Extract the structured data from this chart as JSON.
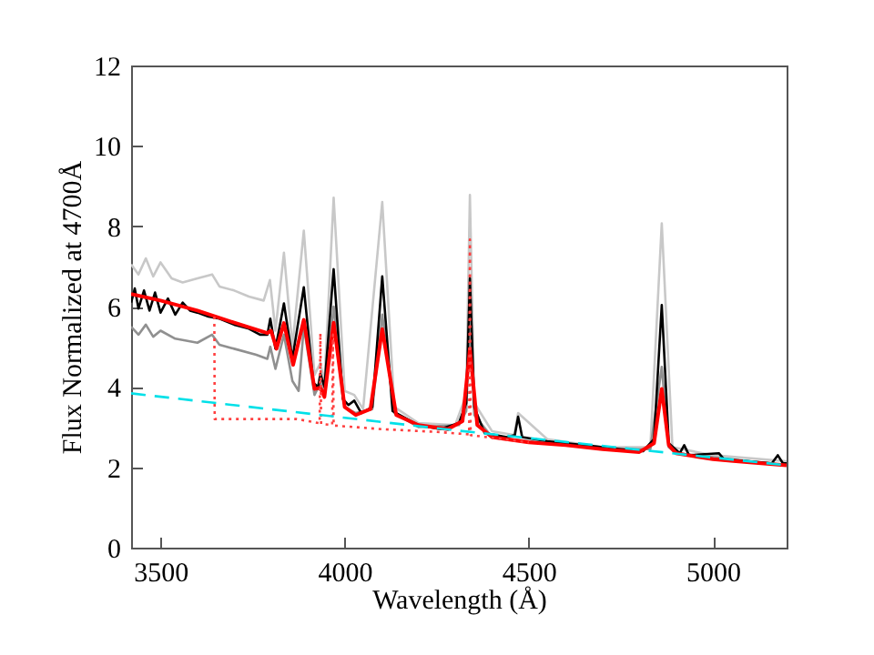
{
  "chart_data": {
    "type": "line",
    "xlabel": "Wavelength (Å)",
    "ylabel": "Flux Normalized at 4700Å",
    "xlim": [
      3420,
      5200
    ],
    "xticks": [
      3500,
      4000,
      4500,
      5000
    ],
    "ylim": [
      0,
      12
    ],
    "yticks": [
      0,
      2,
      4,
      6,
      8,
      10,
      12
    ],
    "grid": false,
    "series": [
      {
        "color": "#c8c8c8",
        "line_style": "solid",
        "x": [
          3420,
          3440,
          3460,
          3480,
          3500,
          3530,
          3560,
          3600,
          3640,
          3660,
          3700,
          3740,
          3780,
          3797,
          3812,
          3835,
          3858,
          3889,
          3918,
          3934,
          3945,
          3970,
          4000,
          4026,
          4050,
          4102,
          4135,
          4200,
          4300,
          4330,
          4340,
          4352,
          4400,
          4460,
          4471,
          4550,
          4700,
          4830,
          4861,
          4890,
          5000,
          5200
        ],
        "values": [
          7.05,
          6.8,
          7.2,
          6.75,
          7.1,
          6.7,
          6.6,
          6.7,
          6.8,
          6.5,
          6.4,
          6.25,
          6.15,
          6.66,
          5.4,
          7.34,
          5.0,
          7.89,
          4.3,
          4.6,
          4.1,
          8.71,
          3.9,
          3.8,
          3.45,
          8.6,
          3.5,
          3.1,
          3.05,
          3.8,
          8.78,
          3.6,
          2.9,
          2.8,
          3.35,
          2.7,
          2.5,
          2.5,
          8.07,
          2.5,
          2.3,
          2.15
        ]
      },
      {
        "color": "#909090",
        "line_style": "solid",
        "x": [
          3420,
          3440,
          3460,
          3480,
          3500,
          3540,
          3600,
          3640,
          3660,
          3700,
          3760,
          3790,
          3798,
          3812,
          3835,
          3858,
          3875,
          3889,
          3918,
          3934,
          3945,
          3970,
          4000,
          4030,
          4075,
          4102,
          4135,
          4200,
          4310,
          4330,
          4340,
          4352,
          4400,
          4700,
          4830,
          4861,
          4880,
          4900,
          5200
        ],
        "values": [
          5.5,
          5.3,
          5.55,
          5.25,
          5.4,
          5.2,
          5.1,
          5.3,
          5.05,
          4.95,
          4.8,
          4.7,
          5.0,
          4.45,
          5.3,
          4.15,
          3.9,
          5.5,
          3.8,
          4.1,
          3.8,
          6.0,
          3.5,
          3.35,
          3.45,
          5.8,
          3.35,
          3.0,
          3.05,
          3.4,
          5.5,
          3.3,
          2.75,
          2.45,
          2.45,
          4.5,
          2.5,
          2.35,
          2.05
        ]
      },
      {
        "color": "#000000",
        "line_style": "solid",
        "x": [
          3420,
          3430,
          3440,
          3455,
          3470,
          3485,
          3500,
          3520,
          3540,
          3560,
          3580,
          3600,
          3630,
          3660,
          3700,
          3740,
          3770,
          3790,
          3798,
          3812,
          3835,
          3858,
          3889,
          3915,
          3928,
          3934,
          3945,
          3970,
          3995,
          4010,
          4026,
          4045,
          4075,
          4102,
          4130,
          4200,
          4260,
          4310,
          4330,
          4340,
          4352,
          4380,
          4440,
          4462,
          4471,
          4482,
          4550,
          4650,
          4750,
          4810,
          4840,
          4861,
          4880,
          4910,
          4922,
          4935,
          5016,
          5030,
          5160,
          5176,
          5190,
          5200
        ],
        "values": [
          6.1,
          6.45,
          5.95,
          6.4,
          5.9,
          6.35,
          5.85,
          6.2,
          5.8,
          6.1,
          5.9,
          5.85,
          5.75,
          5.7,
          5.55,
          5.45,
          5.3,
          5.3,
          5.7,
          4.95,
          6.08,
          4.7,
          6.48,
          4.1,
          4.0,
          4.33,
          4.0,
          6.93,
          3.7,
          3.55,
          3.66,
          3.35,
          3.5,
          6.75,
          3.4,
          3.05,
          2.95,
          3.1,
          3.6,
          6.7,
          3.5,
          2.85,
          2.75,
          2.8,
          3.26,
          2.75,
          2.65,
          2.55,
          2.45,
          2.4,
          2.7,
          6.04,
          2.6,
          2.35,
          2.55,
          2.3,
          2.35,
          2.2,
          2.1,
          2.3,
          2.1,
          2.1
        ]
      },
      {
        "color": "#ff0000",
        "line_style": "solid",
        "x": [
          3420,
          3500,
          3600,
          3700,
          3790,
          3800,
          3815,
          3835,
          3860,
          3889,
          3918,
          3934,
          3945,
          3970,
          4000,
          4030,
          4070,
          4102,
          4140,
          4200,
          4280,
          4320,
          4340,
          4360,
          4400,
          4500,
          4600,
          4700,
          4800,
          4840,
          4861,
          4880,
          4900,
          5000,
          5100,
          5200
        ],
        "values": [
          6.31,
          6.15,
          5.9,
          5.6,
          5.34,
          5.4,
          4.95,
          5.59,
          4.55,
          5.67,
          3.95,
          3.98,
          3.75,
          5.6,
          3.5,
          3.3,
          3.45,
          5.44,
          3.3,
          3.05,
          2.95,
          3.15,
          4.95,
          3.05,
          2.75,
          2.62,
          2.55,
          2.45,
          2.38,
          2.6,
          3.95,
          2.55,
          2.35,
          2.2,
          2.12,
          2.05
        ]
      },
      {
        "color": "#ff4040",
        "line_style": "dotted",
        "x": [
          3646,
          3647,
          3870,
          3930,
          3932,
          3934,
          3936,
          3966,
          3968,
          3970,
          4100,
          4250,
          4338,
          4340,
          4342,
          4500
        ],
        "values": [
          5.75,
          3.2,
          3.2,
          3.1,
          3.1,
          5.34,
          3.08,
          3.05,
          5.3,
          3.04,
          2.95,
          2.88,
          2.82,
          7.67,
          2.8,
          2.62
        ]
      },
      {
        "color": "#00e0e8",
        "line_style": "dashed",
        "x": [
          3420,
          4300,
          5200
        ],
        "values": [
          3.84,
          2.92,
          2.05
        ]
      }
    ]
  }
}
